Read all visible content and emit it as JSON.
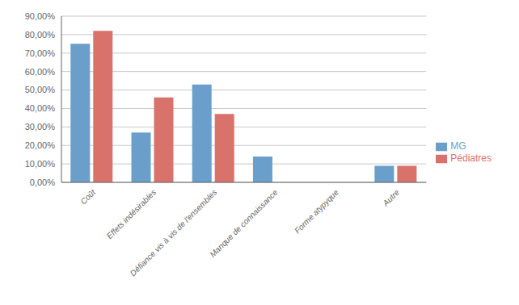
{
  "chart_data": {
    "type": "bar",
    "categories": [
      "Coût",
      "Effets indésirables",
      "Défiance vis à vis de l'ensembles",
      "Manque de connaissance",
      "Forme atypyque",
      "Autre"
    ],
    "series": [
      {
        "name": "MG",
        "color": "#6a9fcb",
        "values": [
          0.75,
          0.27,
          0.53,
          0.14,
          0.0,
          0.09
        ]
      },
      {
        "name": "Pédiatres",
        "color": "#d9726a",
        "values": [
          0.82,
          0.46,
          0.37,
          0.0,
          0.0,
          0.09
        ]
      }
    ],
    "ylim": [
      0,
      0.9
    ],
    "yticks": [
      {
        "value": 0.0,
        "label": "0,00%"
      },
      {
        "value": 0.1,
        "label": "10,00%"
      },
      {
        "value": 0.2,
        "label": "20,00%"
      },
      {
        "value": 0.3,
        "label": "30,00%"
      },
      {
        "value": 0.4,
        "label": "40,00%"
      },
      {
        "value": 0.5,
        "label": "50,00%"
      },
      {
        "value": 0.6,
        "label": "60,00%"
      },
      {
        "value": 0.7,
        "label": "70,00%"
      },
      {
        "value": 0.8,
        "label": "80,00%"
      },
      {
        "value": 0.9,
        "label": "90,00%"
      }
    ],
    "grid": true,
    "legend": "right"
  }
}
